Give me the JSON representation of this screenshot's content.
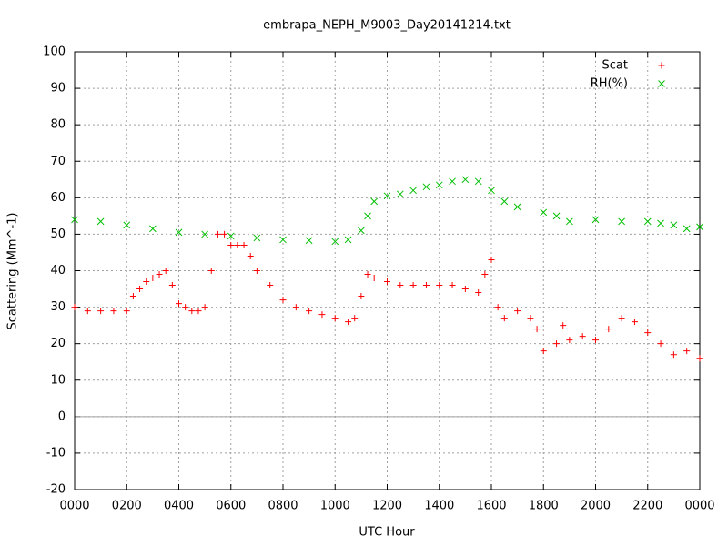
{
  "chart_data": {
    "type": "scatter",
    "title": "embrapa_NEPH_M9003_Day20141214.txt",
    "x_label": "UTC Hour",
    "y_label": "Scattering (Mm^-1)",
    "xlim": [
      0,
      24
    ],
    "xticks": [
      {
        "value": 0,
        "label": "0000"
      },
      {
        "value": 2,
        "label": "0200"
      },
      {
        "value": 4,
        "label": "0400"
      },
      {
        "value": 6,
        "label": "0600"
      },
      {
        "value": 8,
        "label": "0800"
      },
      {
        "value": 10,
        "label": "1000"
      },
      {
        "value": 12,
        "label": "1200"
      },
      {
        "value": 14,
        "label": "1400"
      },
      {
        "value": 16,
        "label": "1600"
      },
      {
        "value": 18,
        "label": "1800"
      },
      {
        "value": 20,
        "label": "2000"
      },
      {
        "value": 22,
        "label": "2200"
      },
      {
        "value": 24,
        "label": "0000"
      }
    ],
    "ylim": [
      -20,
      100
    ],
    "yticks": [
      -20,
      -10,
      0,
      10,
      20,
      30,
      40,
      50,
      60,
      70,
      80,
      90,
      100
    ],
    "grid": true,
    "legend": "top-right",
    "series": [
      {
        "name": "Scat",
        "color": "#ff0000",
        "marker": "plus",
        "x": [
          0,
          0.5,
          1,
          1.5,
          2,
          2.25,
          2.5,
          2.75,
          3,
          3.25,
          3.5,
          3.75,
          4,
          4.25,
          4.5,
          4.75,
          5,
          5.25,
          5.5,
          5.75,
          6,
          6.25,
          6.5,
          6.75,
          7,
          7.5,
          8,
          8.5,
          9,
          9.5,
          10,
          10.5,
          10.75,
          11,
          11.25,
          11.5,
          12,
          12.5,
          13,
          13.5,
          14,
          14.5,
          15,
          15.5,
          15.75,
          16,
          16.25,
          16.5,
          17,
          17.5,
          17.75,
          18,
          18.5,
          18.75,
          19,
          19.5,
          20,
          20.5,
          21,
          21.5,
          22,
          22.5,
          23,
          23.5,
          24
        ],
        "values": [
          30,
          29,
          29,
          29,
          29,
          33,
          35,
          37,
          38,
          39,
          40,
          36,
          31,
          30,
          29,
          29,
          30,
          40,
          50,
          50,
          47,
          47,
          47,
          44,
          40,
          36,
          32,
          30,
          29,
          28,
          27,
          26,
          27,
          33,
          39,
          38,
          37,
          36,
          36,
          36,
          36,
          36,
          35,
          34,
          39,
          43,
          30,
          27,
          29,
          27,
          24,
          18,
          20,
          25,
          21,
          22,
          21,
          24,
          27,
          26,
          23,
          20,
          17,
          18,
          16
        ]
      },
      {
        "name": "RH(%)",
        "color": "#00c000",
        "marker": "cross",
        "x": [
          0,
          1,
          2,
          3,
          4,
          5,
          6,
          7,
          8,
          9,
          10,
          10.5,
          11,
          11.25,
          11.5,
          12,
          12.5,
          13,
          13.5,
          14,
          14.5,
          15,
          15.5,
          16,
          16.5,
          17,
          18,
          18.5,
          19,
          20,
          21,
          22,
          22.5,
          23,
          23.5,
          24
        ],
        "values": [
          54,
          53.5,
          52.5,
          51.5,
          50.5,
          50,
          49.5,
          49,
          48.5,
          48.3,
          48,
          48.5,
          51,
          55,
          59,
          60.5,
          61,
          62,
          63,
          63.5,
          64.5,
          65,
          64.5,
          62,
          59,
          57.5,
          56,
          55,
          53.5,
          54,
          53.5,
          53.5,
          53,
          52.5,
          51.5,
          52
        ]
      }
    ]
  }
}
